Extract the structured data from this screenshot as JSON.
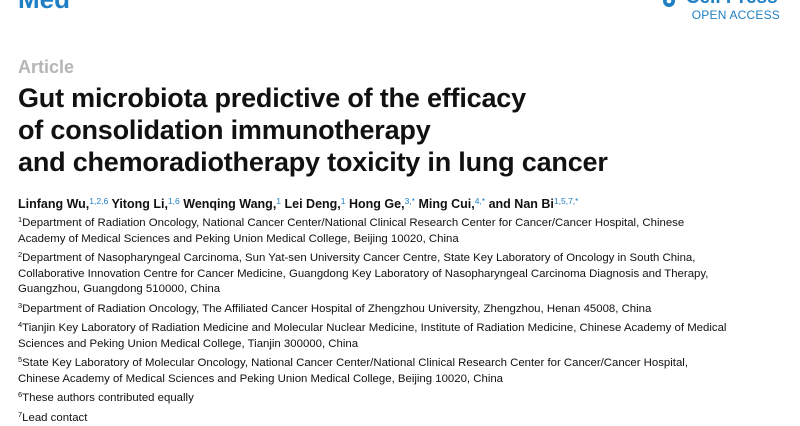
{
  "header": {
    "journal": "Med",
    "brand": "Cell Press",
    "access": "OPEN ACCESS"
  },
  "article_type": "Article",
  "title_lines": [
    "Gut microbiota predictive of the efficacy",
    "of consolidation immunotherapy",
    "and chemoradiotherapy toxicity in lung cancer"
  ],
  "authors": [
    {
      "name": "Linfang Wu,",
      "marks": "1,2,6"
    },
    {
      "name": "Yitong Li,",
      "marks": "1,6"
    },
    {
      "name": "Wenqing Wang,",
      "marks": "1"
    },
    {
      "name": "Lei Deng,",
      "marks": "1"
    },
    {
      "name": "Hong Ge,",
      "marks": "3,*"
    },
    {
      "name": "Ming Cui,",
      "marks": "4,*"
    },
    {
      "name": "and Nan Bi",
      "marks": "1,5,7,*"
    }
  ],
  "affiliations": [
    {
      "num": "1",
      "lines": [
        "Department of Radiation Oncology, National Cancer Center/National Clinical Research Center for Cancer/Cancer Hospital, Chinese",
        "Academy of Medical Sciences and Peking Union Medical College, Beijing 10020, China"
      ]
    },
    {
      "num": "2",
      "lines": [
        "Department of Nasopharyngeal Carcinoma, Sun Yat-sen University Cancer Centre, State Key Laboratory of Oncology in South China,",
        "Collaborative Innovation Centre for Cancer Medicine, Guangdong Key Laboratory of Nasopharyngeal Carcinoma Diagnosis and Therapy,",
        "Guangzhou, Guangdong 510000, China"
      ]
    },
    {
      "num": "3",
      "lines": [
        "Department of Radiation Oncology, The Affiliated Cancer Hospital of Zhengzhou University, Zhengzhou, Henan 45008, China"
      ]
    },
    {
      "num": "4",
      "lines": [
        "Tianjin Key Laboratory of Radiation Medicine and Molecular Nuclear Medicine, Institute of Radiation Medicine, Chinese Academy of Medical",
        "Sciences and Peking Union Medical College, Tianjin 300000, China"
      ]
    },
    {
      "num": "5",
      "lines": [
        "State Key Laboratory of Molecular Oncology, National Cancer Center/National Clinical Research Center for Cancer/Cancer Hospital,",
        "Chinese Academy of Medical Sciences and Peking Union Medical College, Beijing 10020, China"
      ]
    },
    {
      "num": "6",
      "lines": [
        "These authors contributed equally"
      ]
    },
    {
      "num": "7",
      "lines": [
        "Lead contact"
      ]
    }
  ]
}
